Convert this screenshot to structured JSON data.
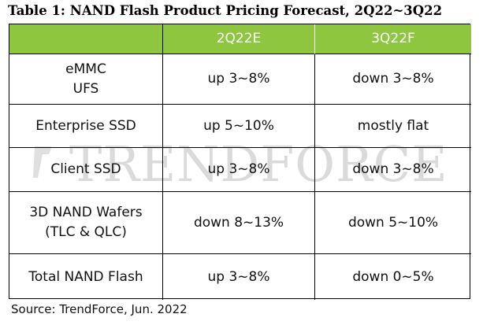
{
  "title": "Table 1: NAND Flash Product Pricing Forecast, 2Q22~3Q22",
  "watermark": "TRENDFORCE",
  "columns": [
    "",
    "2Q22E",
    "3Q22F"
  ],
  "rows": [
    {
      "label_lines": [
        "eMMC",
        "UFS"
      ],
      "q2": "up 3~8%",
      "q3": "down 3~8%"
    },
    {
      "label_lines": [
        "Enterprise SSD"
      ],
      "q2": "up 5~10%",
      "q3": "mostly flat"
    },
    {
      "label_lines": [
        "Client SSD"
      ],
      "q2": "up 3~8%",
      "q3": "down 3~8%"
    },
    {
      "label_lines": [
        "3D NAND Wafers",
        "(TLC & QLC)"
      ],
      "q2": "down 8~13%",
      "q3": "down 5~10%"
    },
    {
      "label_lines": [
        "Total NAND Flash"
      ],
      "q2": "up 3~8%",
      "q3": "down 0~5%"
    }
  ],
  "source": "Source: TrendForce, Jun. 2022",
  "colors": {
    "header_bg": "#8fc640",
    "header_text": "#ffffff"
  }
}
